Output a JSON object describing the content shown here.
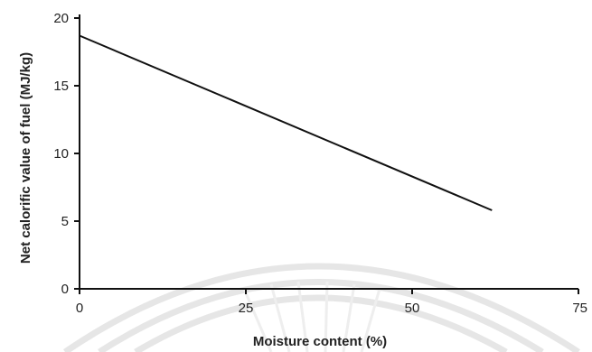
{
  "chart_data": {
    "type": "line",
    "xlabel": "Moisture content (%)",
    "ylabel": "Net calorific value of fuel (MJ/kg)",
    "xlim": [
      0,
      75
    ],
    "ylim": [
      0,
      20
    ],
    "xticks": [
      0,
      25,
      50,
      75
    ],
    "yticks": [
      0,
      5,
      10,
      15,
      20
    ],
    "xtick_labels": [
      "0",
      "25",
      "50",
      "75"
    ],
    "ytick_labels": [
      "0",
      "5",
      "10",
      "15",
      "20"
    ],
    "grid": false,
    "series": [
      {
        "x": [
          0,
          62
        ],
        "y": [
          18.7,
          5.8
        ]
      }
    ]
  }
}
